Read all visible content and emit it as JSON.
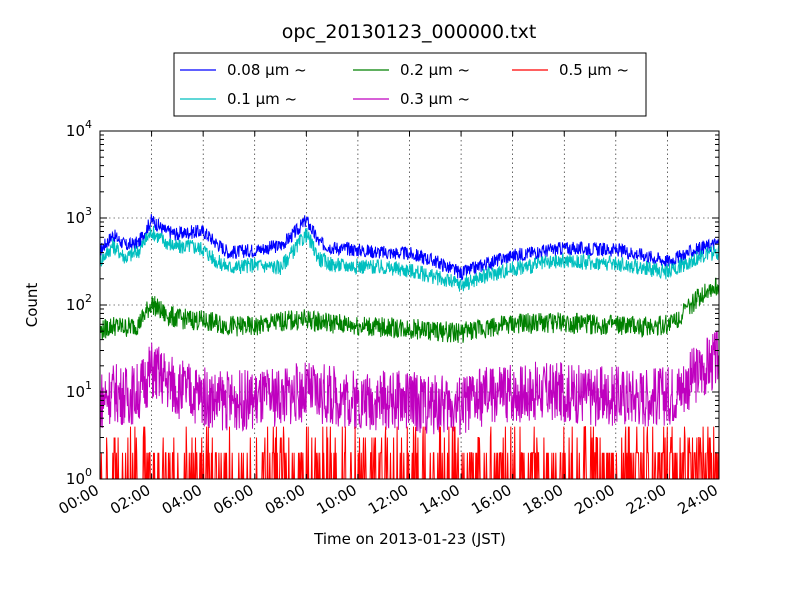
{
  "chart_data": {
    "type": "line",
    "title": "opc_20130123_000000.txt",
    "xlabel": "Time on 2013-01-23 (JST)",
    "ylabel": "Count",
    "yscale": "log",
    "ylim": [
      1,
      10000
    ],
    "xlim": [
      "00:00",
      "24:00"
    ],
    "grid": true,
    "legend_placement": "above plot, top-center",
    "x_ticks": [
      "00:00",
      "02:00",
      "04:00",
      "06:00",
      "08:00",
      "10:00",
      "12:00",
      "14:00",
      "16:00",
      "18:00",
      "20:00",
      "22:00",
      "24:00"
    ],
    "y_ticks": [
      {
        "value": 1,
        "base": "10",
        "exp": "0"
      },
      {
        "value": 10,
        "base": "10",
        "exp": "1"
      },
      {
        "value": 100,
        "base": "10",
        "exp": "2"
      },
      {
        "value": 1000,
        "base": "10",
        "exp": "3"
      },
      {
        "value": 10000,
        "base": "10",
        "exp": "4"
      }
    ],
    "series": [
      {
        "name": "0.08 μm ~",
        "color": "#0000ff",
        "x": [
          "00:00",
          "00:30",
          "01:00",
          "01:30",
          "02:00",
          "02:30",
          "03:00",
          "03:30",
          "04:00",
          "04:30",
          "05:00",
          "06:00",
          "07:00",
          "07:30",
          "08:00",
          "08:30",
          "09:00",
          "10:00",
          "11:00",
          "12:00",
          "13:00",
          "14:00",
          "15:00",
          "16:00",
          "17:00",
          "18:00",
          "19:00",
          "20:00",
          "21:00",
          "22:00",
          "22:30",
          "23:00",
          "23:30",
          "24:00"
        ],
        "values": [
          420,
          640,
          480,
          520,
          950,
          720,
          650,
          690,
          700,
          520,
          400,
          430,
          480,
          650,
          950,
          520,
          460,
          430,
          400,
          390,
          320,
          230,
          300,
          370,
          410,
          450,
          440,
          430,
          380,
          320,
          360,
          420,
          470,
          520
        ]
      },
      {
        "name": "0.1 μm ~",
        "color": "#00bfbf",
        "x": [
          "00:00",
          "00:30",
          "01:00",
          "01:30",
          "02:00",
          "02:30",
          "03:00",
          "03:30",
          "04:00",
          "04:30",
          "05:00",
          "06:00",
          "07:00",
          "07:30",
          "08:00",
          "08:30",
          "09:00",
          "10:00",
          "11:00",
          "12:00",
          "13:00",
          "14:00",
          "15:00",
          "16:00",
          "17:00",
          "18:00",
          "19:00",
          "20:00",
          "21:00",
          "22:00",
          "22:30",
          "23:00",
          "23:30",
          "24:00"
        ],
        "values": [
          320,
          480,
          350,
          420,
          700,
          540,
          460,
          480,
          440,
          320,
          270,
          290,
          270,
          420,
          650,
          340,
          290,
          280,
          270,
          250,
          210,
          170,
          220,
          260,
          290,
          320,
          310,
          300,
          270,
          240,
          280,
          330,
          380,
          400
        ]
      },
      {
        "name": "0.2 μm ~",
        "color": "#008000",
        "x": [
          "00:00",
          "00:30",
          "01:00",
          "01:30",
          "02:00",
          "02:30",
          "03:00",
          "03:30",
          "04:00",
          "04:30",
          "05:00",
          "06:00",
          "07:00",
          "08:00",
          "09:00",
          "10:00",
          "11:00",
          "12:00",
          "13:00",
          "14:00",
          "15:00",
          "16:00",
          "17:00",
          "18:00",
          "19:00",
          "20:00",
          "21:00",
          "22:00",
          "22:30",
          "23:00",
          "23:30",
          "24:00"
        ],
        "values": [
          50,
          58,
          55,
          60,
          105,
          78,
          70,
          68,
          66,
          62,
          58,
          56,
          65,
          68,
          62,
          58,
          55,
          54,
          50,
          48,
          55,
          60,
          62,
          63,
          60,
          58,
          56,
          60,
          75,
          105,
          150,
          160
        ]
      },
      {
        "name": "0.3 μm ~",
        "color": "#bf00bf",
        "x": [
          "00:00",
          "00:30",
          "01:00",
          "01:30",
          "02:00",
          "02:30",
          "03:00",
          "03:30",
          "04:00",
          "04:30",
          "05:00",
          "06:00",
          "07:00",
          "08:00",
          "09:00",
          "10:00",
          "11:00",
          "12:00",
          "13:00",
          "14:00",
          "15:00",
          "16:00",
          "17:00",
          "18:00",
          "19:00",
          "20:00",
          "21:00",
          "22:00",
          "22:30",
          "23:00",
          "23:30",
          "24:00"
        ],
        "values": [
          8,
          10,
          9,
          10,
          18,
          14,
          11,
          10,
          9,
          8,
          8,
          8,
          9,
          10,
          9,
          8,
          8,
          8,
          7,
          7,
          9,
          10,
          10,
          10,
          9,
          9,
          9,
          9,
          11,
          15,
          20,
          24
        ]
      },
      {
        "name": "0.5 μm ~",
        "color": "#ff0000",
        "x": [
          "00:00",
          "02:00",
          "04:00",
          "06:00",
          "08:00",
          "10:00",
          "12:00",
          "14:00",
          "16:00",
          "18:00",
          "20:00",
          "22:00",
          "24:00"
        ],
        "values": [
          1,
          1.5,
          1.4,
          1.3,
          1.4,
          1.4,
          1.3,
          1.3,
          1.5,
          1.6,
          1.6,
          1.8,
          2.2
        ]
      }
    ]
  }
}
